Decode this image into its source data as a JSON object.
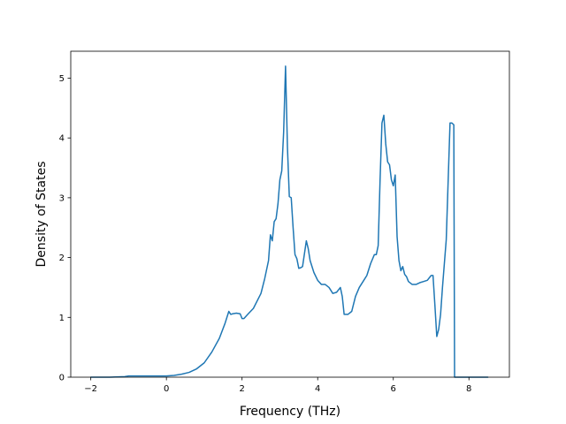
{
  "chart_data": {
    "type": "line",
    "xlabel": "Frequency (THz)",
    "ylabel": "Density of States",
    "xlim": [
      -2.53,
      9.07
    ],
    "ylim": [
      0,
      5.45
    ],
    "xticks": [
      -2,
      0,
      2,
      4,
      6,
      8
    ],
    "yticks": [
      0,
      1,
      2,
      3,
      4,
      5
    ],
    "x_tick_labels": [
      "−2",
      "0",
      "2",
      "4",
      "6",
      "8"
    ],
    "y_tick_labels": [
      "0",
      "1",
      "2",
      "3",
      "4",
      "5"
    ],
    "grid": false,
    "line_color": "#1f77b4",
    "series": [
      {
        "x": [
          -2.0,
          -1.5,
          -1.1,
          -1.0,
          -0.9,
          -0.5,
          0.0,
          0.2,
          0.4,
          0.6,
          0.8,
          1.0,
          1.2,
          1.4,
          1.55,
          1.65,
          1.7,
          1.75,
          1.85,
          1.95,
          2.0,
          2.05,
          2.15,
          2.3,
          2.5,
          2.6,
          2.7,
          2.75,
          2.8,
          2.85,
          2.9,
          2.95,
          3.0,
          3.05,
          3.1,
          3.15,
          3.2,
          3.25,
          3.3,
          3.35,
          3.4,
          3.45,
          3.5,
          3.55,
          3.6,
          3.7,
          3.75,
          3.8,
          3.9,
          4.0,
          4.1,
          4.2,
          4.3,
          4.4,
          4.5,
          4.6,
          4.65,
          4.7,
          4.8,
          4.9,
          5.0,
          5.1,
          5.2,
          5.3,
          5.4,
          5.5,
          5.55,
          5.6,
          5.65,
          5.7,
          5.75,
          5.8,
          5.85,
          5.9,
          5.95,
          6.0,
          6.05,
          6.1,
          6.15,
          6.2,
          6.25,
          6.3,
          6.35,
          6.4,
          6.5,
          6.6,
          6.7,
          6.8,
          6.9,
          7.0,
          7.05,
          7.1,
          7.15,
          7.2,
          7.25,
          7.3,
          7.4,
          7.5,
          7.55,
          7.6,
          7.62,
          7.66,
          7.68,
          7.7,
          7.9,
          8.5
        ],
        "y": [
          0.0,
          0.0,
          0.01,
          0.02,
          0.02,
          0.02,
          0.02,
          0.03,
          0.05,
          0.08,
          0.14,
          0.24,
          0.42,
          0.65,
          0.9,
          1.1,
          1.05,
          1.06,
          1.07,
          1.06,
          0.98,
          0.98,
          1.05,
          1.15,
          1.4,
          1.65,
          1.95,
          2.38,
          2.28,
          2.6,
          2.65,
          2.9,
          3.3,
          3.45,
          4.1,
          5.2,
          3.85,
          3.02,
          3.0,
          2.5,
          2.05,
          1.98,
          1.82,
          1.83,
          1.85,
          2.28,
          2.15,
          1.95,
          1.75,
          1.62,
          1.55,
          1.55,
          1.5,
          1.4,
          1.42,
          1.5,
          1.35,
          1.05,
          1.05,
          1.1,
          1.35,
          1.5,
          1.6,
          1.7,
          1.9,
          2.05,
          2.05,
          2.2,
          3.3,
          4.25,
          4.38,
          3.9,
          3.6,
          3.55,
          3.3,
          3.2,
          3.38,
          2.35,
          1.95,
          1.78,
          1.85,
          1.72,
          1.68,
          1.6,
          1.55,
          1.55,
          1.58,
          1.6,
          1.62,
          1.7,
          1.7,
          1.2,
          0.68,
          0.8,
          1.05,
          1.5,
          2.3,
          4.25,
          4.25,
          4.22,
          0.0,
          0.0,
          0.0,
          0.0,
          0.0,
          0.0
        ]
      }
    ]
  }
}
